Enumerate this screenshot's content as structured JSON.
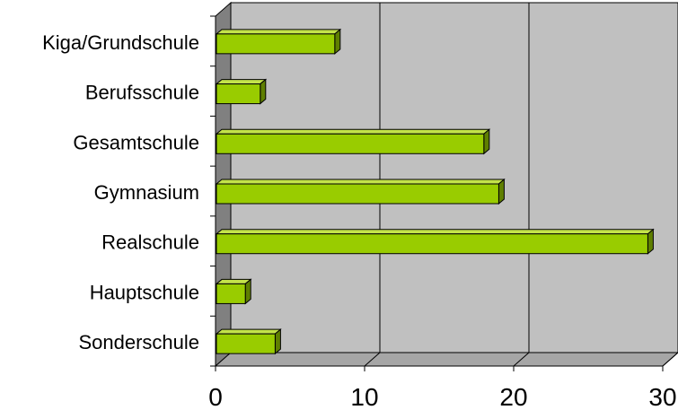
{
  "chart_data": {
    "type": "bar",
    "orientation": "horizontal",
    "style": "3d",
    "categories": [
      "Kiga/Grundschule",
      "Berufsschule",
      "Gesamtschule",
      "Gymnasium",
      "Realschule",
      "Hauptschule",
      "Sonderschule"
    ],
    "values": [
      8,
      3,
      18,
      19,
      29,
      2,
      4
    ],
    "xlim": [
      0,
      30
    ],
    "xticks": [
      "0",
      "10",
      "20",
      "30"
    ],
    "grid": true,
    "legend": false,
    "title": "",
    "xlabel": "",
    "ylabel": "",
    "colors": {
      "bar_front": "#99cc00",
      "bar_top": "#c3e24a",
      "bar_side": "#5f7f00",
      "plot_back": "#c0c0c0",
      "left_wall": "#808080",
      "floor": "#a6a6a6"
    }
  }
}
